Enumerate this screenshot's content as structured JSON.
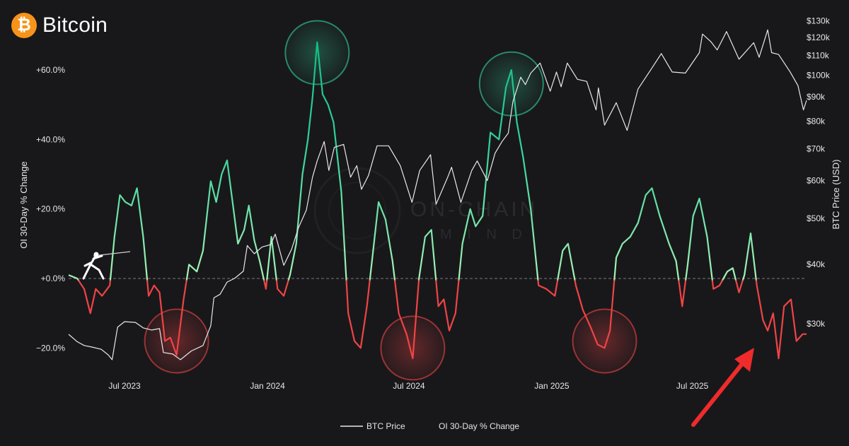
{
  "brand": {
    "name": "Bitcoin",
    "logo_glyph": "₿",
    "logo_icon": "bitcoin-logo-icon",
    "logo_color": "#f7931a"
  },
  "watermark": {
    "line1": "ON-CHAIN",
    "line2": "M I N D"
  },
  "colors": {
    "background": "#18181b",
    "price_line": "#e8e8e8",
    "oi_positive": "#6ee7a0",
    "oi_positive_strong": "#10b981",
    "oi_negative": "#ef4444",
    "zero_line": "#7a7a7a",
    "peak_circle": "#34d399",
    "trough_circle": "#ef4444",
    "arrow": "#ef2b2b"
  },
  "chart_data": {
    "type": "line",
    "title": "",
    "xlabel": "",
    "ylabel_left": "OI 30-Day % Change",
    "ylabel_right": "BTC Price (USD)",
    "y_left_ticks": [
      "+60.0%",
      "+40.0%",
      "+20.0%",
      "+0.0%",
      "−20.0%"
    ],
    "y_left_tick_values": [
      60,
      40,
      20,
      0,
      -20
    ],
    "y_left_range": [
      -32,
      75
    ],
    "y_right_scale": "log",
    "y_right_ticks": [
      "$130k",
      "$120k",
      "$110k",
      "$100k",
      "$90k",
      "$80k",
      "$70k",
      "$60k",
      "$50k",
      "$40k",
      "$30k"
    ],
    "y_right_tick_values": [
      130000,
      120000,
      110000,
      100000,
      90000,
      80000,
      70000,
      60000,
      50000,
      40000,
      30000
    ],
    "x_ticks": [
      "Jul 2023",
      "Jan 2024",
      "Jul 2024",
      "Jan 2025",
      "Jul 2025"
    ],
    "x_tick_dates": [
      "2023-07-01",
      "2024-01-01",
      "2024-07-01",
      "2025-01-01",
      "2025-07-01"
    ],
    "x_range": [
      "2023-04-20",
      "2025-11-25"
    ],
    "legend_position": "bottom-center",
    "grid": false,
    "series": [
      {
        "name": "BTC Price",
        "axis": "right",
        "points": [
          [
            "2023-04-20",
            28500
          ],
          [
            "2023-05-01",
            27500
          ],
          [
            "2023-05-10",
            27000
          ],
          [
            "2023-05-20",
            26800
          ],
          [
            "2023-06-01",
            26500
          ],
          [
            "2023-06-10",
            25800
          ],
          [
            "2023-06-15",
            25200
          ],
          [
            "2023-06-22",
            29500
          ],
          [
            "2023-07-01",
            30300
          ],
          [
            "2023-07-15",
            30200
          ],
          [
            "2023-07-25",
            29400
          ],
          [
            "2023-08-05",
            29100
          ],
          [
            "2023-08-15",
            29300
          ],
          [
            "2023-08-20",
            26100
          ],
          [
            "2023-09-01",
            25900
          ],
          [
            "2023-09-11",
            25200
          ],
          [
            "2023-09-25",
            26300
          ],
          [
            "2023-10-10",
            27000
          ],
          [
            "2023-10-20",
            29700
          ],
          [
            "2023-10-24",
            34000
          ],
          [
            "2023-11-01",
            34600
          ],
          [
            "2023-11-10",
            36700
          ],
          [
            "2023-11-20",
            37400
          ],
          [
            "2023-12-01",
            38700
          ],
          [
            "2023-12-06",
            43800
          ],
          [
            "2023-12-15",
            42100
          ],
          [
            "2023-12-25",
            43500
          ],
          [
            "2024-01-05",
            44000
          ],
          [
            "2024-01-11",
            46300
          ],
          [
            "2024-01-22",
            39800
          ],
          [
            "2024-02-01",
            43000
          ],
          [
            "2024-02-10",
            47800
          ],
          [
            "2024-02-20",
            52000
          ],
          [
            "2024-02-28",
            61000
          ],
          [
            "2024-03-05",
            66000
          ],
          [
            "2024-03-14",
            72500
          ],
          [
            "2024-03-20",
            63000
          ],
          [
            "2024-03-27",
            70500
          ],
          [
            "2024-04-08",
            71500
          ],
          [
            "2024-04-17",
            61000
          ],
          [
            "2024-04-25",
            64500
          ],
          [
            "2024-05-01",
            57500
          ],
          [
            "2024-05-10",
            61500
          ],
          [
            "2024-05-21",
            71000
          ],
          [
            "2024-06-05",
            71000
          ],
          [
            "2024-06-20",
            64500
          ],
          [
            "2024-07-05",
            54000
          ],
          [
            "2024-07-15",
            63000
          ],
          [
            "2024-07-29",
            68000
          ],
          [
            "2024-08-05",
            53500
          ],
          [
            "2024-08-20",
            61000
          ],
          [
            "2024-08-25",
            64000
          ],
          [
            "2024-09-06",
            54000
          ],
          [
            "2024-09-20",
            63000
          ],
          [
            "2024-09-27",
            66000
          ],
          [
            "2024-10-10",
            60000
          ],
          [
            "2024-10-20",
            68500
          ],
          [
            "2024-10-29",
            72500
          ],
          [
            "2024-11-06",
            75500
          ],
          [
            "2024-11-12",
            88000
          ],
          [
            "2024-11-22",
            99000
          ],
          [
            "2024-11-28",
            95500
          ],
          [
            "2024-12-05",
            101000
          ],
          [
            "2024-12-17",
            106000
          ],
          [
            "2024-12-30",
            92500
          ],
          [
            "2025-01-07",
            101500
          ],
          [
            "2025-01-13",
            94500
          ],
          [
            "2025-01-21",
            106000
          ],
          [
            "2025-02-03",
            98000
          ],
          [
            "2025-02-15",
            97000
          ],
          [
            "2025-02-27",
            84500
          ],
          [
            "2025-03-02",
            94000
          ],
          [
            "2025-03-10",
            78500
          ],
          [
            "2025-03-25",
            87500
          ],
          [
            "2025-04-08",
            76500
          ],
          [
            "2025-04-22",
            93500
          ],
          [
            "2025-05-10",
            103500
          ],
          [
            "2025-05-22",
            111000
          ],
          [
            "2025-06-05",
            101500
          ],
          [
            "2025-06-22",
            101000
          ],
          [
            "2025-07-10",
            111500
          ],
          [
            "2025-07-14",
            122000
          ],
          [
            "2025-07-25",
            117500
          ],
          [
            "2025-08-02",
            113000
          ],
          [
            "2025-08-14",
            123500
          ],
          [
            "2025-08-30",
            108000
          ],
          [
            "2025-09-18",
            117000
          ],
          [
            "2025-09-25",
            109000
          ],
          [
            "2025-10-06",
            124500
          ],
          [
            "2025-10-11",
            111500
          ],
          [
            "2025-10-20",
            110500
          ],
          [
            "2025-11-04",
            101500
          ],
          [
            "2025-11-14",
            95000
          ],
          [
            "2025-11-21",
            84500
          ],
          [
            "2025-11-25",
            88500
          ]
        ]
      },
      {
        "name": "OI 30-Day % Change",
        "axis": "left",
        "points": [
          [
            "2023-04-20",
            1
          ],
          [
            "2023-05-01",
            0
          ],
          [
            "2023-05-10",
            -3
          ],
          [
            "2023-05-18",
            -10
          ],
          [
            "2023-05-25",
            -3
          ],
          [
            "2023-06-02",
            -5
          ],
          [
            "2023-06-12",
            -2
          ],
          [
            "2023-06-18",
            12
          ],
          [
            "2023-06-25",
            24
          ],
          [
            "2023-07-02",
            22
          ],
          [
            "2023-07-10",
            21
          ],
          [
            "2023-07-17",
            26
          ],
          [
            "2023-07-25",
            12
          ],
          [
            "2023-08-01",
            -5
          ],
          [
            "2023-08-08",
            -2
          ],
          [
            "2023-08-15",
            -4
          ],
          [
            "2023-08-22",
            -18
          ],
          [
            "2023-08-29",
            -17
          ],
          [
            "2023-09-06",
            -22
          ],
          [
            "2023-09-15",
            -6
          ],
          [
            "2023-09-22",
            4
          ],
          [
            "2023-10-02",
            2
          ],
          [
            "2023-10-10",
            8
          ],
          [
            "2023-10-20",
            28
          ],
          [
            "2023-10-27",
            22
          ],
          [
            "2023-11-03",
            30
          ],
          [
            "2023-11-10",
            34
          ],
          [
            "2023-11-17",
            22
          ],
          [
            "2023-11-24",
            10
          ],
          [
            "2023-12-02",
            14
          ],
          [
            "2023-12-08",
            21
          ],
          [
            "2023-12-15",
            11
          ],
          [
            "2023-12-22",
            5
          ],
          [
            "2023-12-30",
            -3
          ],
          [
            "2024-01-06",
            12
          ],
          [
            "2024-01-14",
            -3
          ],
          [
            "2024-01-22",
            -5
          ],
          [
            "2024-01-30",
            1
          ],
          [
            "2024-02-07",
            10
          ],
          [
            "2024-02-15",
            30
          ],
          [
            "2024-02-22",
            40
          ],
          [
            "2024-02-28",
            52
          ],
          [
            "2024-03-05",
            68
          ],
          [
            "2024-03-12",
            53
          ],
          [
            "2024-03-19",
            50
          ],
          [
            "2024-03-26",
            45
          ],
          [
            "2024-04-05",
            25
          ],
          [
            "2024-04-14",
            -10
          ],
          [
            "2024-04-22",
            -18
          ],
          [
            "2024-04-30",
            -20
          ],
          [
            "2024-05-08",
            -8
          ],
          [
            "2024-05-16",
            8
          ],
          [
            "2024-05-23",
            22
          ],
          [
            "2024-06-01",
            17
          ],
          [
            "2024-06-10",
            5
          ],
          [
            "2024-06-18",
            -10
          ],
          [
            "2024-06-28",
            -16
          ],
          [
            "2024-07-06",
            -23
          ],
          [
            "2024-07-14",
            0
          ],
          [
            "2024-07-22",
            12
          ],
          [
            "2024-07-30",
            14
          ],
          [
            "2024-08-08",
            -8
          ],
          [
            "2024-08-15",
            -6
          ],
          [
            "2024-08-22",
            -15
          ],
          [
            "2024-08-30",
            -10
          ],
          [
            "2024-09-08",
            10
          ],
          [
            "2024-09-18",
            20
          ],
          [
            "2024-09-25",
            15
          ],
          [
            "2024-10-04",
            18
          ],
          [
            "2024-10-14",
            42
          ],
          [
            "2024-10-25",
            40
          ],
          [
            "2024-11-03",
            55
          ],
          [
            "2024-11-10",
            60
          ],
          [
            "2024-11-17",
            45
          ],
          [
            "2024-11-25",
            35
          ],
          [
            "2024-12-05",
            20
          ],
          [
            "2024-12-15",
            -2
          ],
          [
            "2024-12-25",
            -3
          ],
          [
            "2025-01-05",
            -5
          ],
          [
            "2025-01-15",
            8
          ],
          [
            "2025-01-22",
            10
          ],
          [
            "2025-02-01",
            -2
          ],
          [
            "2025-02-10",
            -9
          ],
          [
            "2025-02-20",
            -14
          ],
          [
            "2025-03-01",
            -19
          ],
          [
            "2025-03-10",
            -20
          ],
          [
            "2025-03-17",
            -15
          ],
          [
            "2025-03-25",
            6
          ],
          [
            "2025-04-02",
            10
          ],
          [
            "2025-04-12",
            12
          ],
          [
            "2025-04-22",
            16
          ],
          [
            "2025-05-02",
            24
          ],
          [
            "2025-05-10",
            26
          ],
          [
            "2025-05-20",
            18
          ],
          [
            "2025-06-01",
            10
          ],
          [
            "2025-06-10",
            5
          ],
          [
            "2025-06-18",
            -8
          ],
          [
            "2025-06-25",
            4
          ],
          [
            "2025-07-02",
            18
          ],
          [
            "2025-07-10",
            23
          ],
          [
            "2025-07-20",
            12
          ],
          [
            "2025-07-28",
            -3
          ],
          [
            "2025-08-05",
            -2
          ],
          [
            "2025-08-15",
            2
          ],
          [
            "2025-08-22",
            3
          ],
          [
            "2025-08-30",
            -4
          ],
          [
            "2025-09-06",
            1
          ],
          [
            "2025-09-14",
            13
          ],
          [
            "2025-09-22",
            -2
          ],
          [
            "2025-09-30",
            -12
          ],
          [
            "2025-10-06",
            -15
          ],
          [
            "2025-10-13",
            -10
          ],
          [
            "2025-10-20",
            -23
          ],
          [
            "2025-10-27",
            -8
          ],
          [
            "2025-11-05",
            -6
          ],
          [
            "2025-11-12",
            -18
          ],
          [
            "2025-11-20",
            -16
          ],
          [
            "2025-11-25",
            -16
          ]
        ]
      }
    ],
    "highlights": [
      {
        "kind": "peak",
        "date": "2024-03-05",
        "value": 65
      },
      {
        "kind": "peak",
        "date": "2024-11-10",
        "value": 56
      },
      {
        "kind": "trough",
        "date": "2023-09-06",
        "value": -18
      },
      {
        "kind": "trough",
        "date": "2024-07-06",
        "value": -20
      },
      {
        "kind": "trough",
        "date": "2025-03-10",
        "value": -18
      }
    ]
  }
}
